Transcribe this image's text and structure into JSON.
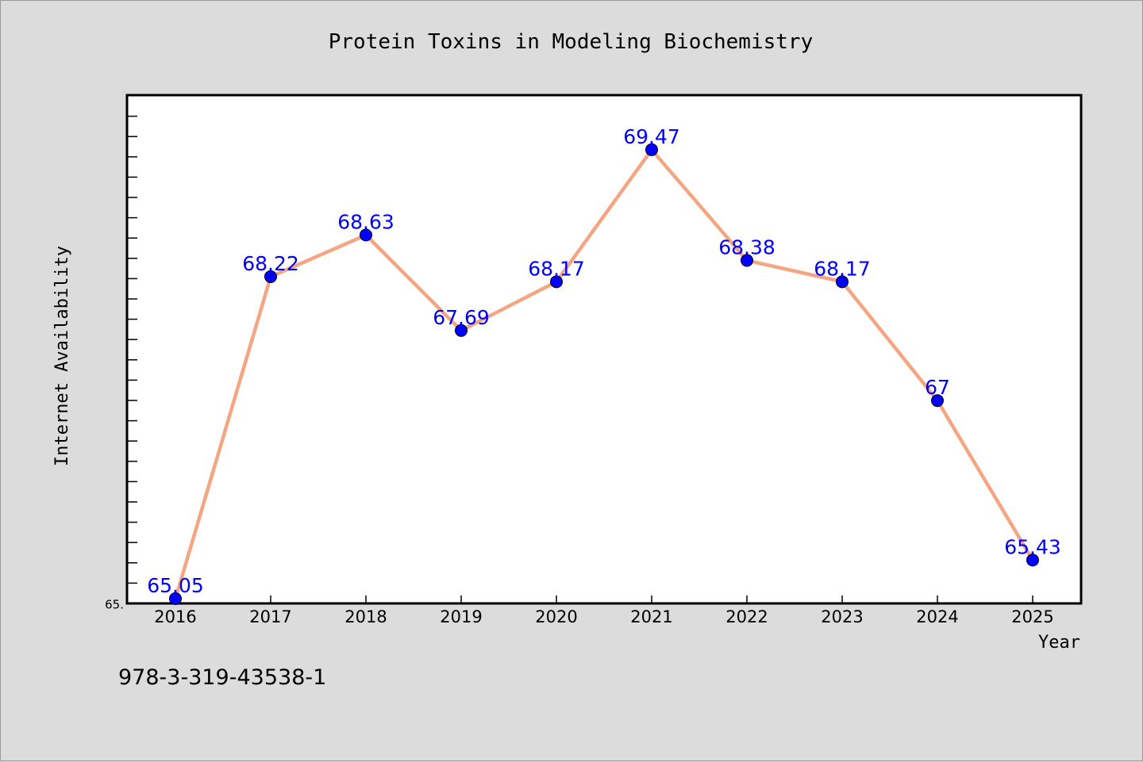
{
  "chart_data": {
    "type": "line",
    "title": "Protein Toxins in Modeling Biochemistry",
    "xlabel": "Year",
    "ylabel": "Internet Availability",
    "categories": [
      "2016",
      "2017",
      "2018",
      "2019",
      "2020",
      "2021",
      "2022",
      "2023",
      "2024",
      "2025"
    ],
    "series": [
      {
        "values": [
          65.05,
          68.22,
          68.63,
          67.69,
          68.17,
          69.47,
          68.38,
          68.17,
          67,
          65.43
        ],
        "labels": [
          "65.05",
          "68.22",
          "68.63",
          "67.69",
          "68.17",
          "69.47",
          "68.38",
          "68.17",
          "67",
          "65.43"
        ],
        "line_color": "#f4a582",
        "marker_color": "#0000ff"
      }
    ],
    "ylim": [
      65,
      70
    ],
    "ytick_labels": [
      {
        "value": 65,
        "text": "65."
      }
    ],
    "grid": false,
    "legend": "none",
    "label_color": "#0000ff"
  },
  "footer": {
    "identifier": "978-3-319-43538-1"
  },
  "colors": {
    "background": "#dcdcdc",
    "plot_area": "#ffffff",
    "axes": "#000000"
  }
}
